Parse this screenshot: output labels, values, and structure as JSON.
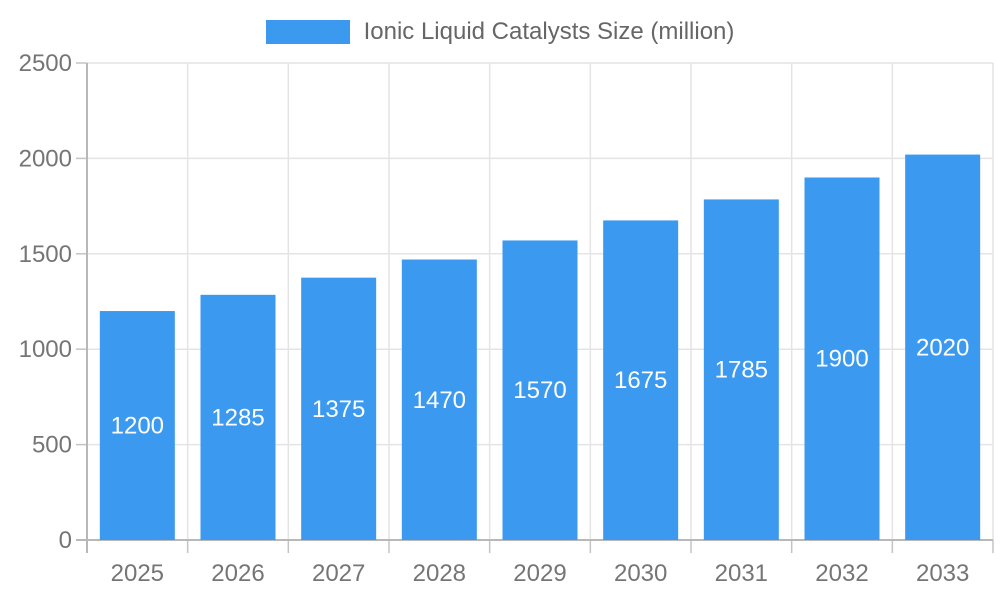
{
  "legend": {
    "label": "Ionic Liquid Catalysts Size (million)"
  },
  "chart_data": {
    "type": "bar",
    "title": "",
    "series_name": "Ionic Liquid Catalysts Size (million)",
    "categories": [
      "2025",
      "2026",
      "2027",
      "2028",
      "2029",
      "2030",
      "2031",
      "2032",
      "2033"
    ],
    "values": [
      1200,
      1285,
      1375,
      1470,
      1570,
      1675,
      1785,
      1900,
      2020
    ],
    "xlabel": "",
    "ylabel": "",
    "ylim": [
      0,
      2500
    ],
    "yticks": [
      0,
      500,
      1000,
      1500,
      2000,
      2500
    ],
    "grid": true,
    "legend_position": "top",
    "bar_color": "#3B9AF0",
    "value_label_color": "#FFFFFF"
  },
  "colors": {
    "bar": "#3B9AF0",
    "gridline": "#E4E4E4",
    "axis": "#B8B8B8",
    "tick": "#C4C4C4",
    "tick_text": "#757575",
    "legend_text": "#666666",
    "background": "#FFFFFF"
  }
}
